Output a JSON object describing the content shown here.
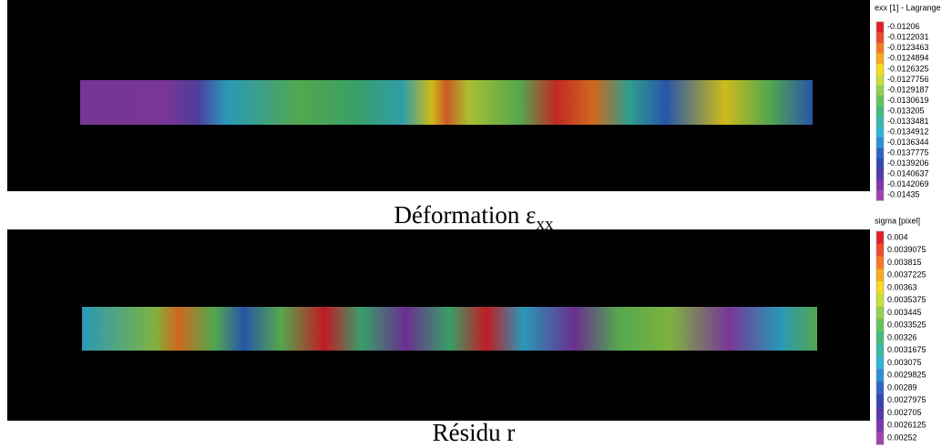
{
  "panels": [
    {
      "caption": [
        "Déformation ε",
        "xx"
      ],
      "colorbar": {
        "title": "exx [1] - Lagrange",
        "labels": [
          "-0.01206",
          "-0.0122031",
          "-0.0123463",
          "-0.0124894",
          "-0.0126325",
          "-0.0127756",
          "-0.0129187",
          "-0.0130619",
          "-0.013205",
          "-0.0133481",
          "-0.0134912",
          "-0.0136344",
          "-0.0137775",
          "-0.0139206",
          "-0.0140637",
          "-0.0142069",
          "-0.01435"
        ]
      }
    },
    {
      "caption": [
        "Résidu r"
      ],
      "colorbar": {
        "title": "sigma [pixel]",
        "labels": [
          "0.004",
          "0.0039075",
          "0.003815",
          "0.0037225",
          "0.00363",
          "0.0035375",
          "0.003445",
          "0.0033525",
          "0.00326",
          "0.0031675",
          "0.003075",
          "0.0029825",
          "0.00289",
          "0.0027975",
          "0.002705",
          "0.0026125",
          "0.00252"
        ]
      }
    }
  ],
  "colors": [
    "#e3202a",
    "#ee4a2b",
    "#f47a22",
    "#f8ab1c",
    "#f3dc1f",
    "#c9df3a",
    "#95d24b",
    "#62c55c",
    "#43bb7c",
    "#37b9a8",
    "#30b3d8",
    "#2f8fd6",
    "#2f64c6",
    "#3346b0",
    "#5637a8",
    "#7c37a8",
    "#a043b0"
  ]
}
